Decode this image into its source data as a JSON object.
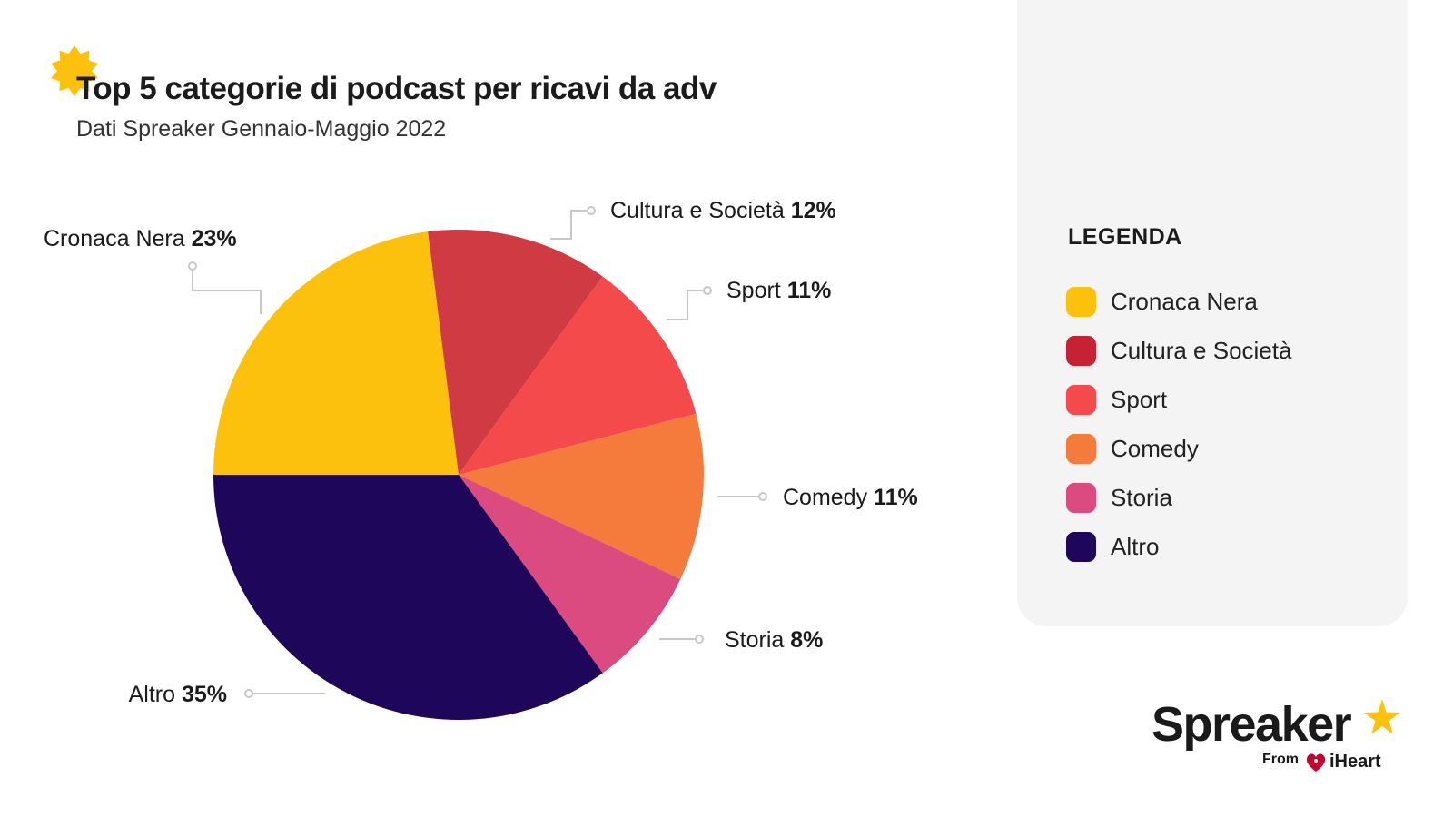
{
  "chart_data": {
    "type": "pie",
    "title": "Top 5 categorie di podcast per ricavi da adv",
    "subtitle": "Dati Spreaker Gennaio-Maggio 2022",
    "slices": [
      {
        "name": "Cronaca Nera",
        "value": 23,
        "color": "#fcc10c",
        "label_pct": "23%"
      },
      {
        "name": "Cultura e Società",
        "value": 12,
        "color": "#d03a43",
        "label_pct": "12%"
      },
      {
        "name": "Sport",
        "value": 11,
        "color": "#f54a4c",
        "label_pct": "11%"
      },
      {
        "name": "Comedy",
        "value": 11,
        "color": "#f47b3c",
        "label_pct": "11%"
      },
      {
        "name": "Storia",
        "value": 8,
        "color": "#db4b80",
        "label_pct": "8%"
      },
      {
        "name": "Altro",
        "value": 35,
        "color": "#1e065b",
        "label_pct": "35%"
      }
    ],
    "legend": {
      "title": "LEGENDA",
      "placement": "right",
      "items": [
        {
          "label": "Cronaca Nera",
          "color": "#fcc10c"
        },
        {
          "label": "Cultura e Società",
          "color": "#c62234"
        },
        {
          "label": "Sport",
          "color": "#f54a4c"
        },
        {
          "label": "Comedy",
          "color": "#f47b3c"
        },
        {
          "label": "Storia",
          "color": "#db4b80"
        },
        {
          "label": "Altro",
          "color": "#1e065b"
        }
      ]
    }
  },
  "brand": {
    "name": "Spreaker",
    "from_text": "From",
    "partner": "iHeart",
    "accent_color": "#fcc10c",
    "partner_color": "#c6002b",
    "star_icon": "star-burst-icon",
    "partner_icon": "iheart-logo-icon"
  }
}
